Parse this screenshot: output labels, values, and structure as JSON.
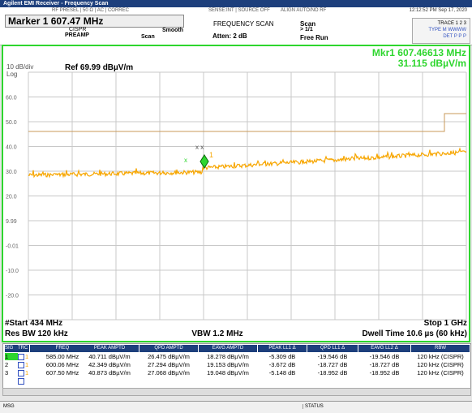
{
  "window": {
    "title": "Agilent EMI Receiver - Frequency Scan"
  },
  "header": {
    "status_left": "RF PRESEL | 50 Ω | AC | CORREC",
    "status_mid": "SENSE:INT | SOURCE OFF",
    "status_align": "ALIGN AUTO/NO RF",
    "datetime": "12:12:52 PM Sep 17, 2020",
    "marker": "Marker 1 607.47 MHz",
    "cispr": "CISPR",
    "preamp": "PREAMP",
    "scan_label": "Scan",
    "smooth": "Smooth",
    "mode": "FREQUENCY SCAN",
    "atten": "Atten: 2 dB",
    "scan": "Scan",
    "count": "> 1/1",
    "run": "Free Run",
    "trace_box": [
      "TRACE 1 2 3",
      "TYPE M WWWW",
      "DET P P P"
    ]
  },
  "plot": {
    "mkr_freq": "Mkr1  607.46613 MHz",
    "mkr_amp": "31.115 dBµV/m",
    "scale": "10 dB/div",
    "log": "Log",
    "ref": "Ref 69.99 dBµV/m",
    "ylabels": [
      "60.0",
      "50.0",
      "40.0",
      "30.0",
      "20.0",
      "9.99",
      "-0.01",
      "-10.0",
      "-20.0"
    ],
    "start": "#Start 434 MHz",
    "stop": "Stop 1 GHz",
    "rbw": "Res BW 120 kHz",
    "vbw": "VBW 1.2 MHz",
    "dwell": "Dwell Time 10.6 µs (60 kHz)",
    "marker_num": "1"
  },
  "table": {
    "header": [
      "SIG",
      "TRC",
      "FREQ",
      "PEAK AMPTD",
      "QPD AMPTD",
      "EAVG AMPTD",
      "PEAK LL1 Δ",
      "QPD LL1 Δ",
      "EAVG LL2 Δ",
      "RBW"
    ],
    "rows": [
      [
        "1",
        "1",
        "585.00 MHz",
        "40.711 dBµV/m",
        "26.475 dBµV/m",
        "18.278 dBµV/m",
        "-5.309 dB",
        "-19.546 dB",
        "-19.546 dB",
        "120 kHz (CISPR)"
      ],
      [
        "2",
        "1",
        "600.06 MHz",
        "42.349 dBµV/m",
        "27.294 dBµV/m",
        "19.153 dBµV/m",
        "-3.672 dB",
        "-18.727 dB",
        "-18.727 dB",
        "120 kHz (CISPR)"
      ],
      [
        "3",
        "1",
        "607.50 MHz",
        "40.873 dBµV/m",
        "27.068 dBµV/m",
        "19.048 dBµV/m",
        "-5.148 dB",
        "-18.952 dB",
        "-18.952 dB",
        "120 kHz (CISPR)"
      ]
    ]
  },
  "statusbar": {
    "msg": "MSG",
    "status": "STATUS"
  }
}
